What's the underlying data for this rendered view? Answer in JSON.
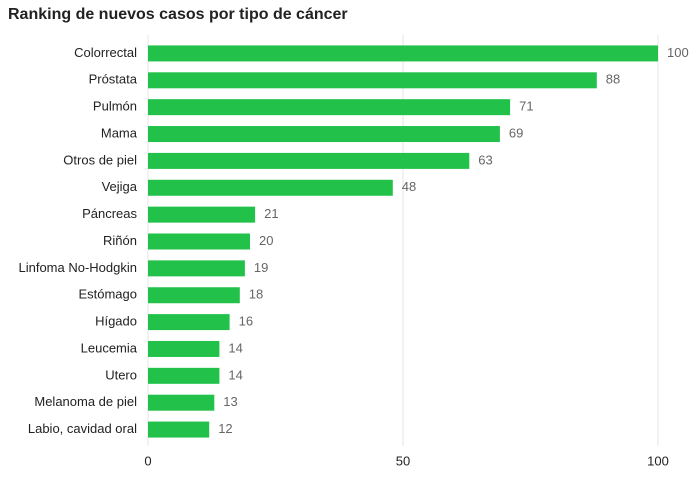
{
  "chart_data": {
    "type": "bar",
    "orientation": "horizontal",
    "title": "Ranking de nuevos casos por tipo de cáncer",
    "categories": [
      "Colorrectal",
      "Próstata",
      "Pulmón",
      "Mama",
      "Otros de piel",
      "Vejiga",
      "Páncreas",
      "Riñón",
      "Linfoma No-Hodgkin",
      "Estómago",
      "Hígado",
      "Leucemia",
      "Utero",
      "Melanoma de piel",
      "Labio, cavidad oral"
    ],
    "values": [
      100,
      88,
      71,
      69,
      63,
      48,
      21,
      20,
      19,
      18,
      16,
      14,
      14,
      13,
      12
    ],
    "color": "#22c24a",
    "xlim": [
      0,
      100
    ],
    "xticks": [
      0,
      50,
      100
    ],
    "grid": true
  }
}
